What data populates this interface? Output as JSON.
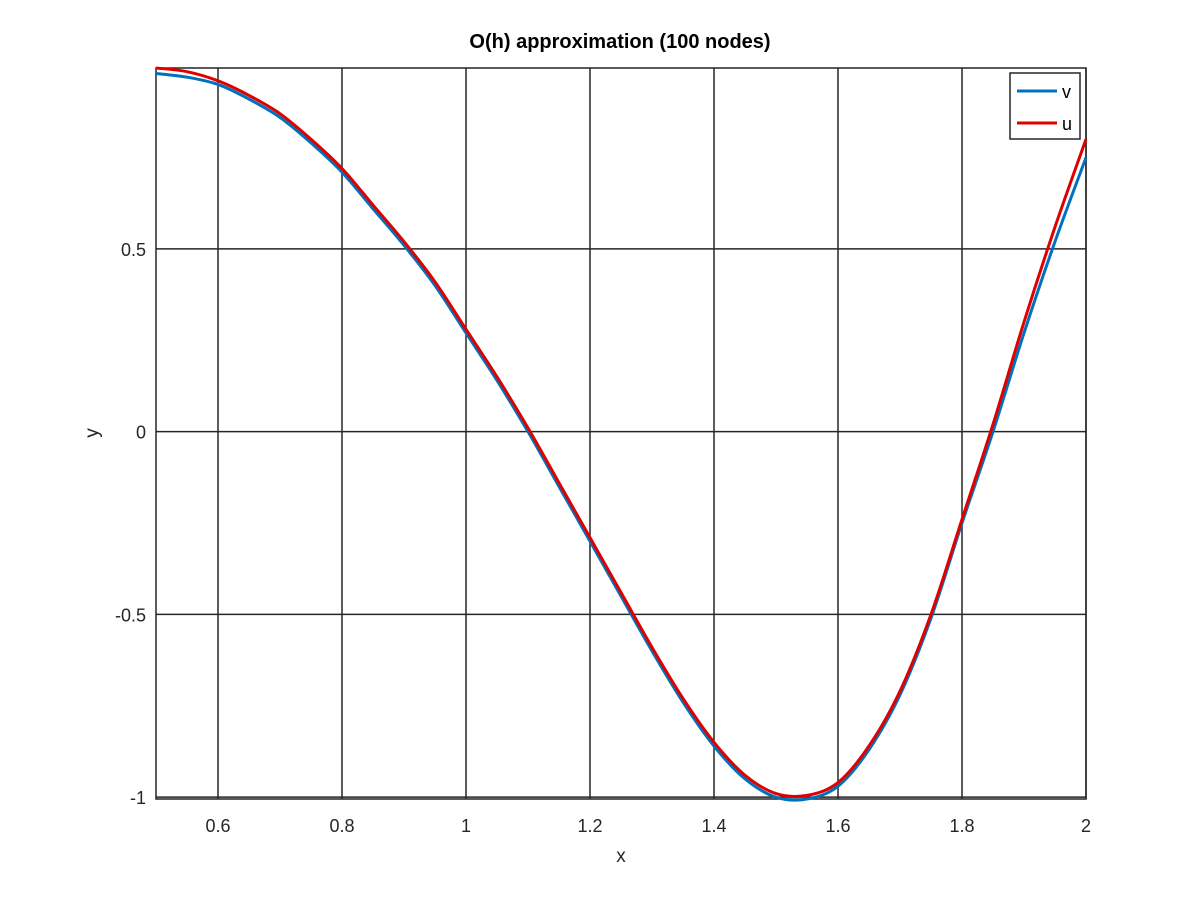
{
  "chart_data": {
    "type": "line",
    "title": "O(h) approximation (100 nodes)",
    "xlabel": "x",
    "ylabel": "y",
    "xlim": [
      0.5,
      2
    ],
    "ylim": [
      -1.005,
      0.995
    ],
    "xticks": [
      0.6,
      0.8,
      1,
      1.2,
      1.4,
      1.6,
      1.8,
      2
    ],
    "xtick_labels": [
      "0.6",
      "0.8",
      "1",
      "1.2",
      "1.4",
      "1.6",
      "1.8",
      "2"
    ],
    "yticks": [
      -1,
      -0.5,
      0,
      0.5
    ],
    "ytick_labels": [
      "-1",
      "-0.5",
      "0",
      "0.5"
    ],
    "grid": true,
    "legend_position": "top-right",
    "series": [
      {
        "name": "v",
        "color": "#0072bd",
        "x": [
          0.5,
          0.55,
          0.6,
          0.65,
          0.7,
          0.75,
          0.8,
          0.85,
          0.9,
          0.95,
          1.0,
          1.05,
          1.1,
          1.15,
          1.2,
          1.25,
          1.3,
          1.35,
          1.4,
          1.45,
          1.5,
          1.55,
          1.6,
          1.65,
          1.7,
          1.75,
          1.8,
          1.85,
          1.9,
          1.95,
          2.0
        ],
        "y": [
          0.98,
          0.97,
          0.95,
          0.91,
          0.86,
          0.79,
          0.71,
          0.61,
          0.51,
          0.4,
          0.27,
          0.14,
          0.0,
          -0.15,
          -0.3,
          -0.45,
          -0.6,
          -0.74,
          -0.86,
          -0.95,
          -1.0,
          -1.005,
          -0.97,
          -0.87,
          -0.72,
          -0.51,
          -0.25,
          0.0,
          0.27,
          0.52,
          0.75
        ]
      },
      {
        "name": "u",
        "color": "#e00000",
        "x": [
          0.5,
          0.55,
          0.6,
          0.65,
          0.7,
          0.75,
          0.8,
          0.85,
          0.9,
          0.95,
          1.0,
          1.05,
          1.1,
          1.15,
          1.2,
          1.25,
          1.3,
          1.35,
          1.4,
          1.45,
          1.5,
          1.55,
          1.6,
          1.65,
          1.7,
          1.75,
          1.8,
          1.85,
          1.9,
          1.95,
          2.0
        ],
        "y": [
          0.995,
          0.985,
          0.96,
          0.92,
          0.87,
          0.8,
          0.72,
          0.62,
          0.52,
          0.41,
          0.28,
          0.15,
          0.01,
          -0.14,
          -0.29,
          -0.44,
          -0.59,
          -0.73,
          -0.85,
          -0.94,
          -0.99,
          -0.995,
          -0.96,
          -0.86,
          -0.71,
          -0.5,
          -0.24,
          0.02,
          0.3,
          0.56,
          0.8
        ]
      }
    ]
  }
}
